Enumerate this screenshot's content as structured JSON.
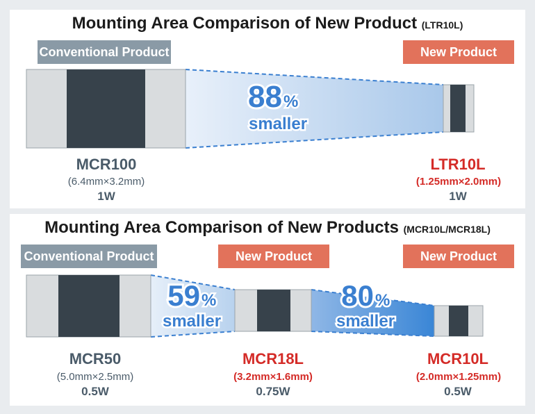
{
  "panel1": {
    "title": "Mounting Area Comparison of New Product",
    "title_suffix": "(LTR10L)",
    "conventional_tag": "Conventional Product",
    "new_tag": "New Product",
    "reduction_value": "88",
    "reduction_unit": "%",
    "reduction_word": "smaller",
    "left_product": {
      "name": "MCR100",
      "dimensions": "(6.4mm×3.2mm)",
      "power": "1W"
    },
    "right_product": {
      "name": "LTR10L",
      "dimensions": "(1.25mm×2.0mm)",
      "power": "1W"
    }
  },
  "panel2": {
    "title": "Mounting Area Comparison of New Products",
    "title_suffix": "(MCR10L/MCR18L)",
    "conventional_tag": "Conventional Product",
    "new_tag_middle": "New Product",
    "new_tag_right": "New Product",
    "reduction1_value": "59",
    "reduction1_unit": "%",
    "reduction1_word": "smaller",
    "reduction2_value": "80",
    "reduction2_unit": "%",
    "reduction2_word": "smaller",
    "left_product": {
      "name": "MCR50",
      "dimensions": "(5.0mm×2.5mm)",
      "power": "0.5W"
    },
    "middle_product": {
      "name": "MCR18L",
      "dimensions": "(3.2mm×1.6mm)",
      "power": "0.75W"
    },
    "right_product": {
      "name": "MCR10L",
      "dimensions": "(2.0mm×1.25mm)",
      "power": "0.5W"
    }
  },
  "colors": {
    "background": "#e9ecef",
    "panel": "#ffffff",
    "terminal": "#d9dcde",
    "body_dark": "#37424b",
    "conventional_tag": "#8a9aa6",
    "new_tag": "#e2725b",
    "highlight_blue": "#3a7fd0",
    "red_text": "#d42b27",
    "gray_text": "#4a5b69"
  }
}
